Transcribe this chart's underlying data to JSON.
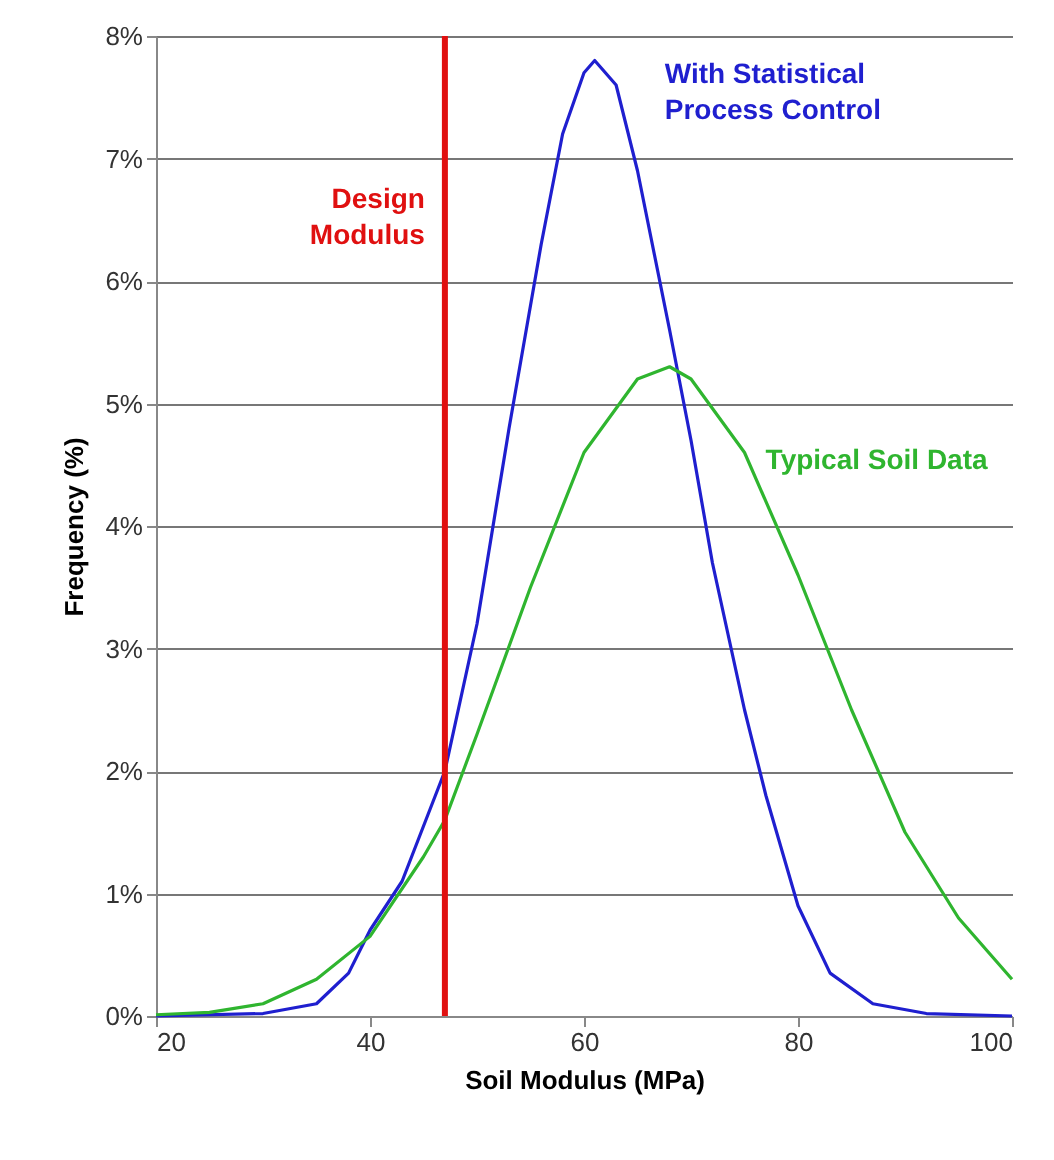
{
  "chart_data": {
    "type": "line",
    "xlabel": "Soil Modulus (MPa)",
    "ylabel": "Frequency (%)",
    "xlim": [
      20,
      100
    ],
    "xticks": [
      20,
      40,
      60,
      80,
      100
    ],
    "ylim": [
      0,
      8
    ],
    "yticks": [
      {
        "value": 0,
        "label": "0%"
      },
      {
        "value": 1,
        "label": "1%"
      },
      {
        "value": 2,
        "label": "2%"
      },
      {
        "value": 3,
        "label": "3%"
      },
      {
        "value": 4,
        "label": "4%"
      },
      {
        "value": 5,
        "label": "5%"
      },
      {
        "value": 6,
        "label": "6%"
      },
      {
        "value": 7,
        "label": "7%"
      },
      {
        "value": 8,
        "label": "8%"
      }
    ],
    "grid": "y",
    "series": [
      {
        "name": "With Statistical Process Control",
        "color": "#1f1fcf",
        "x": [
          20,
          30,
          35,
          38,
          40,
          43,
          47,
          50,
          53,
          56,
          58,
          60,
          61,
          63,
          65,
          68,
          70,
          72,
          75,
          77,
          80,
          83,
          87,
          92,
          100
        ],
        "values": [
          0,
          0.02,
          0.1,
          0.35,
          0.7,
          1.1,
          2.0,
          3.2,
          4.8,
          6.3,
          7.2,
          7.7,
          7.8,
          7.6,
          6.9,
          5.6,
          4.7,
          3.7,
          2.5,
          1.8,
          0.9,
          0.35,
          0.1,
          0.02,
          0
        ]
      },
      {
        "name": "Typical Soil Data",
        "color": "#2fb52f",
        "x": [
          20,
          25,
          30,
          35,
          40,
          45,
          47,
          50,
          55,
          60,
          65,
          68,
          70,
          75,
          80,
          85,
          90,
          95,
          100
        ],
        "values": [
          0.01,
          0.03,
          0.1,
          0.3,
          0.65,
          1.3,
          1.6,
          2.3,
          3.5,
          4.6,
          5.2,
          5.3,
          5.2,
          4.6,
          3.6,
          2.5,
          1.5,
          0.8,
          0.3
        ]
      }
    ],
    "ref_lines": [
      {
        "axis": "x",
        "value": 47,
        "label": "Design Modulus",
        "color": "#e01010"
      }
    ]
  }
}
